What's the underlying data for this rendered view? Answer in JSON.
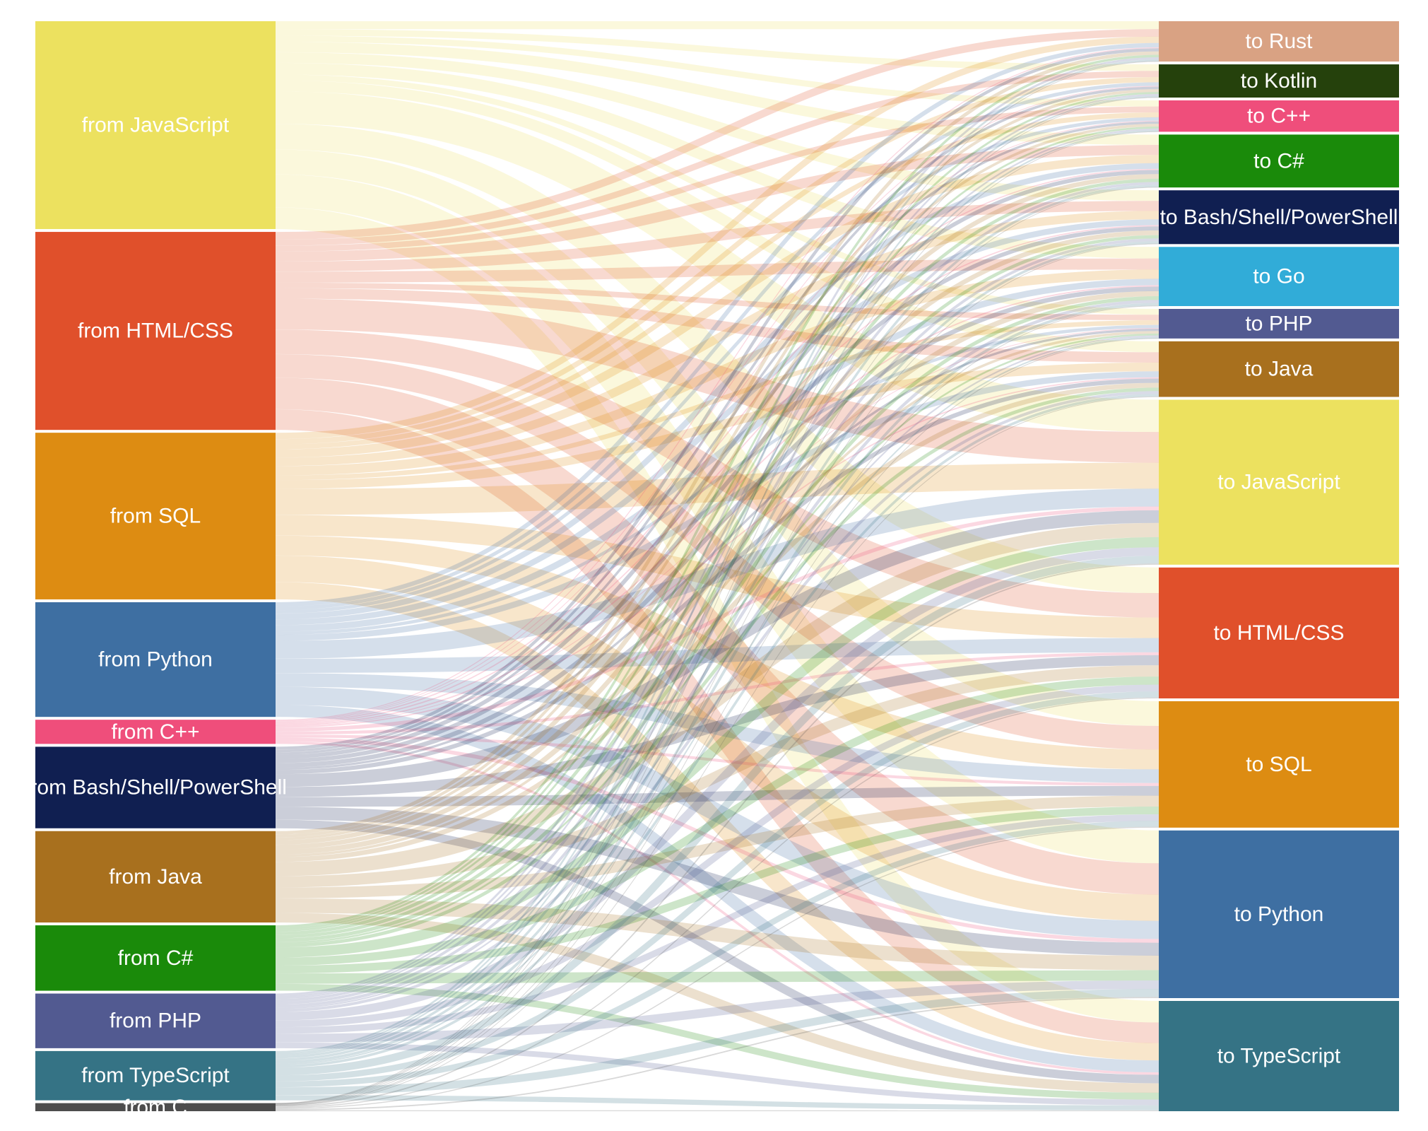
{
  "diagram": {
    "type": "sankey",
    "sources": [
      {
        "id": "js",
        "label": "from JavaScript",
        "color": "#ECE15F",
        "value": 232
      },
      {
        "id": "html",
        "label": "from HTML/CSS",
        "color": "#E0502B",
        "value": 221
      },
      {
        "id": "sql",
        "label": "from SQL",
        "color": "#DD8C12",
        "value": 186
      },
      {
        "id": "py",
        "label": "from Python",
        "color": "#3E6FA2",
        "value": 128
      },
      {
        "id": "cpp",
        "label": "from C++",
        "color": "#EF4E7B",
        "value": 27
      },
      {
        "id": "bash",
        "label": "from Bash/Shell/PowerShell",
        "color": "#101F51",
        "value": 91
      },
      {
        "id": "java",
        "label": "from Java",
        "color": "#A8701E",
        "value": 102
      },
      {
        "id": "cs",
        "label": "from C#",
        "color": "#1A8A0A",
        "value": 73
      },
      {
        "id": "php",
        "label": "from PHP",
        "color": "#525A91",
        "value": 61
      },
      {
        "id": "ts",
        "label": "from TypeScript",
        "color": "#357385",
        "value": 55
      },
      {
        "id": "c",
        "label": "from C",
        "color": "#4D4D4D",
        "value": 9
      }
    ],
    "targets": [
      {
        "id": "rust",
        "label": "to Rust",
        "color": "#D9A283",
        "value": 45
      },
      {
        "id": "kt",
        "label": "to Kotlin",
        "color": "#25410C",
        "value": 37
      },
      {
        "id": "cpp",
        "label": "to C++",
        "color": "#EF4E7B",
        "value": 35
      },
      {
        "id": "cs",
        "label": "to C#",
        "color": "#1A8A0A",
        "value": 59
      },
      {
        "id": "bash",
        "label": "to Bash/Shell/PowerShell",
        "color": "#101F51",
        "value": 60
      },
      {
        "id": "go",
        "label": "to Go",
        "color": "#31ACD8",
        "value": 66
      },
      {
        "id": "php",
        "label": "to PHP",
        "color": "#525A91",
        "value": 33
      },
      {
        "id": "java",
        "label": "to Java",
        "color": "#A8701E",
        "value": 62
      },
      {
        "id": "js",
        "label": "to JavaScript",
        "color": "#ECE15F",
        "value": 184
      },
      {
        "id": "html",
        "label": "to HTML/CSS",
        "color": "#E0502B",
        "value": 146
      },
      {
        "id": "sql",
        "label": "to SQL",
        "color": "#DD8C12",
        "value": 141
      },
      {
        "id": "py",
        "label": "to Python",
        "color": "#3E6FA2",
        "value": 187
      },
      {
        "id": "ts",
        "label": "to TypeScript",
        "color": "#357385",
        "value": 123
      }
    ],
    "flow_opacity": 0.22
  }
}
